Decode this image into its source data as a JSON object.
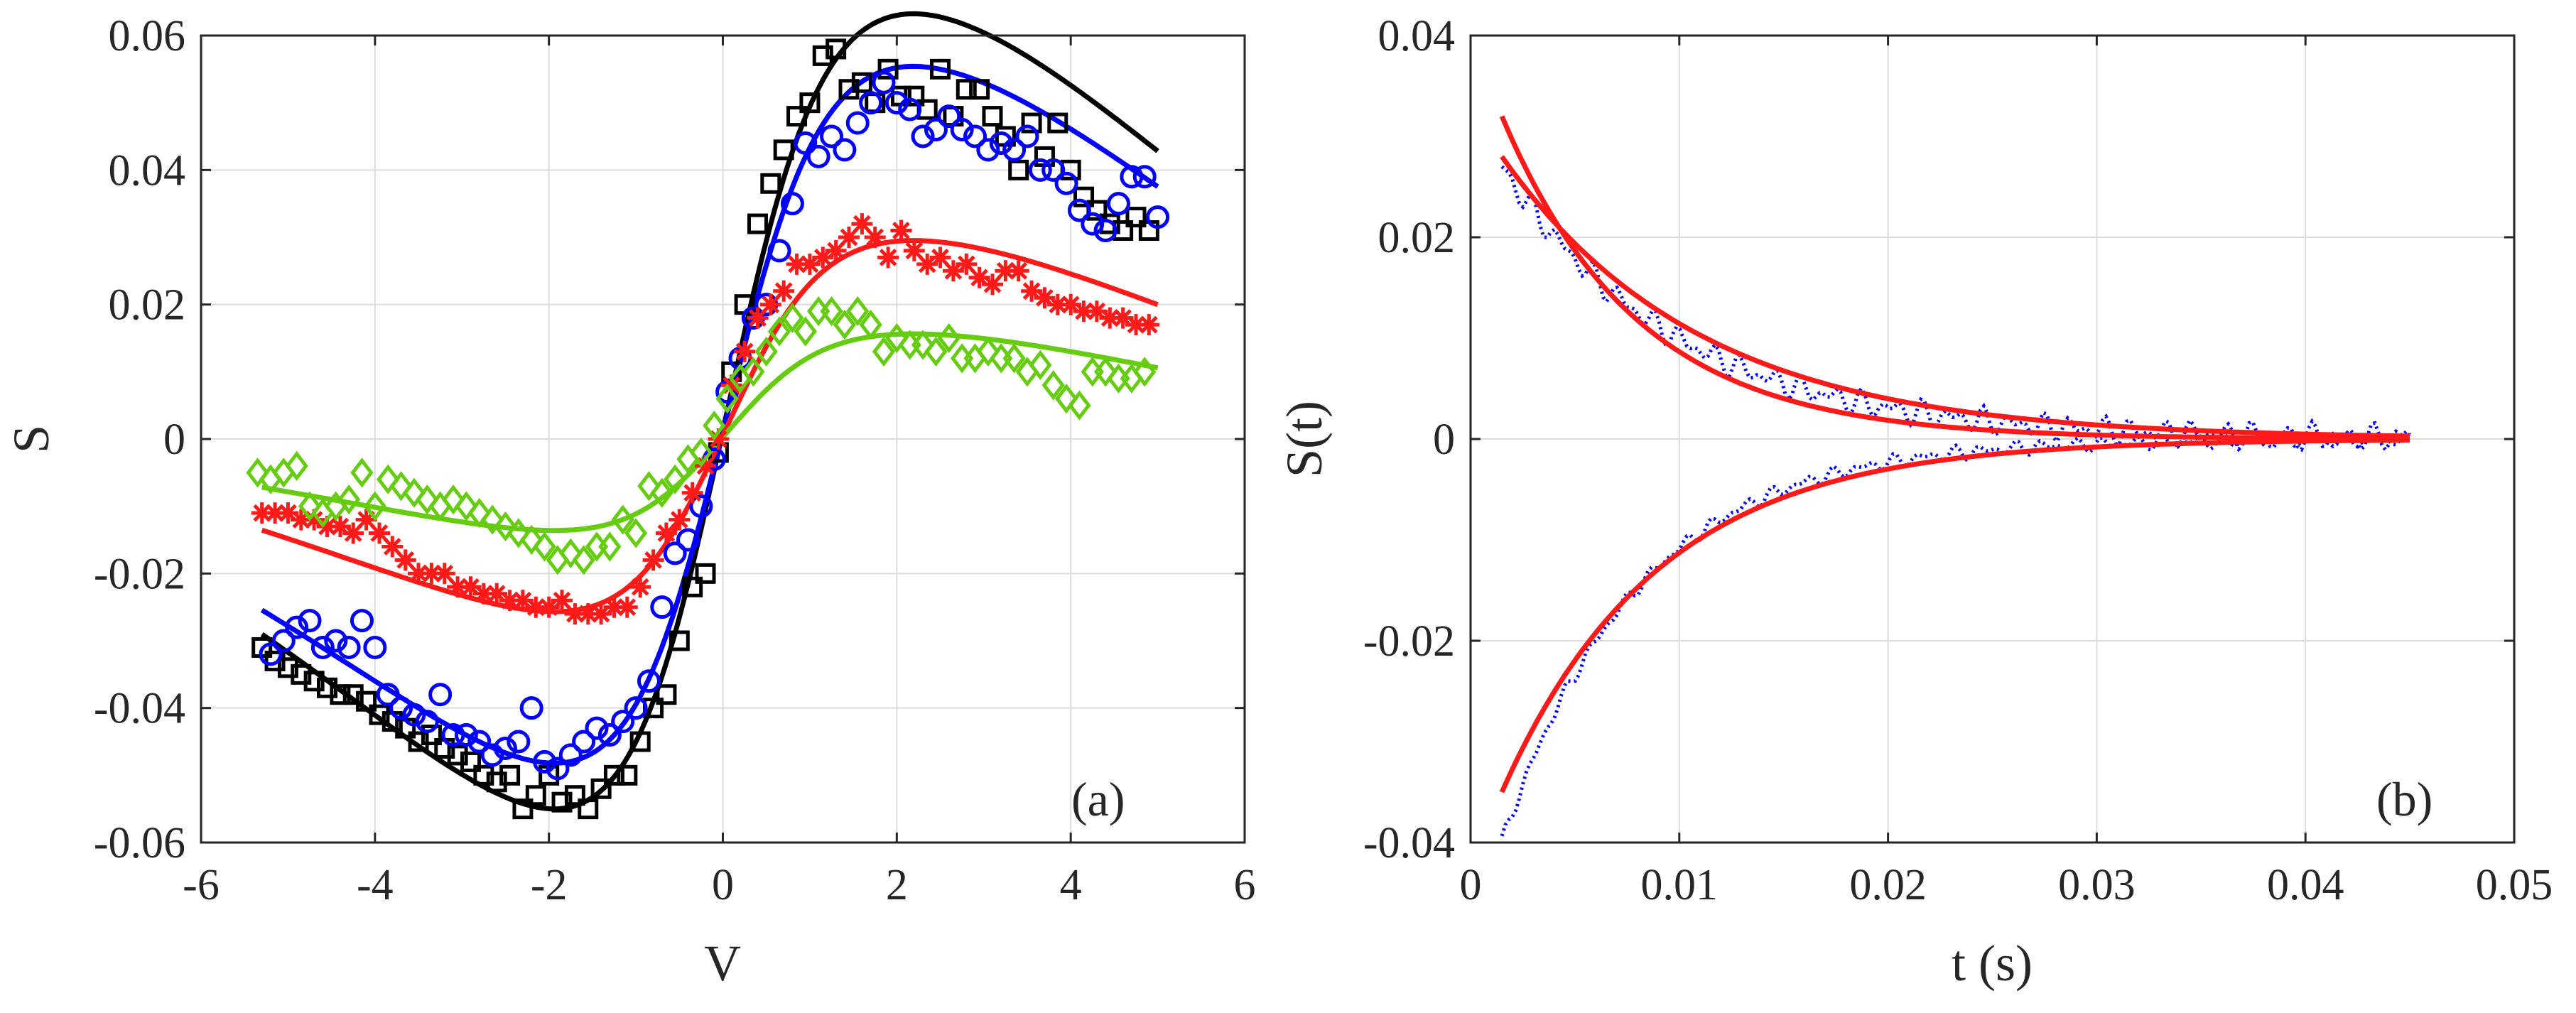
{
  "colors": {
    "black": "#000000",
    "blue": "#0000ff",
    "red": "#ff1a1a",
    "green": "#66cc11",
    "axis": "#262626",
    "grid": "#dcdcdc"
  },
  "chart_data": [
    {
      "type": "scatter",
      "panel_label": "(a)",
      "xlabel": "V",
      "ylabel": "S",
      "xlim": [
        -6,
        6
      ],
      "ylim": [
        -0.06,
        0.06
      ],
      "xticks": [
        -6,
        -4,
        -2,
        0,
        2,
        4,
        6
      ],
      "xtick_labels": [
        "-6",
        "-4",
        "-2",
        "0",
        "2",
        "4",
        "6"
      ],
      "yticks": [
        -0.06,
        -0.04,
        -0.02,
        0,
        0.02,
        0.04,
        0.06
      ],
      "ytick_labels": [
        "-0.06",
        "-0.04",
        "-0.02",
        "0",
        "0.02",
        "0.04",
        "0.06"
      ],
      "grid": true,
      "series": [
        {
          "name": "black squares",
          "marker": "square",
          "color": "#000000",
          "x": [
            -5.3,
            -5.15,
            -5.0,
            -4.85,
            -4.7,
            -4.55,
            -4.4,
            -4.25,
            -4.1,
            -3.95,
            -3.8,
            -3.65,
            -3.5,
            -3.35,
            -3.2,
            -3.05,
            -2.9,
            -2.75,
            -2.6,
            -2.45,
            -2.3,
            -2.15,
            -2.0,
            -1.85,
            -1.7,
            -1.55,
            -1.4,
            -1.25,
            -1.1,
            -0.95,
            -0.8,
            -0.65,
            -0.5,
            -0.35,
            -0.2,
            -0.05,
            0.1,
            0.25,
            0.4,
            0.55,
            0.7,
            0.85,
            1.0,
            1.15,
            1.3,
            1.45,
            1.6,
            1.75,
            1.9,
            2.05,
            2.2,
            2.35,
            2.5,
            2.65,
            2.8,
            2.95,
            3.1,
            3.25,
            3.4,
            3.55,
            3.7,
            3.85,
            4.0,
            4.15,
            4.3,
            4.45,
            4.6,
            4.75,
            4.9
          ],
          "y": [
            -0.031,
            -0.033,
            -0.034,
            -0.035,
            -0.036,
            -0.037,
            -0.038,
            -0.038,
            -0.039,
            -0.041,
            -0.042,
            -0.043,
            -0.045,
            -0.044,
            -0.046,
            -0.047,
            -0.048,
            -0.05,
            -0.051,
            -0.05,
            -0.055,
            -0.053,
            -0.05,
            -0.054,
            -0.053,
            -0.055,
            -0.052,
            -0.05,
            -0.05,
            -0.045,
            -0.04,
            -0.038,
            -0.03,
            -0.022,
            -0.02,
            -0.002,
            0.01,
            0.02,
            0.032,
            0.038,
            0.043,
            0.048,
            0.05,
            0.057,
            0.058,
            0.052,
            0.053,
            0.05,
            0.055,
            0.051,
            0.051,
            0.049,
            0.055,
            0.048,
            0.052,
            0.052,
            0.048,
            0.045,
            0.04,
            0.047,
            0.042,
            0.047,
            0.04,
            0.036,
            0.034,
            0.032,
            0.031,
            0.033,
            0.031
          ]
        },
        {
          "name": "blue circles",
          "marker": "circle",
          "color": "#0000ff",
          "x": [
            -5.2,
            -5.05,
            -4.9,
            -4.75,
            -4.6,
            -4.45,
            -4.3,
            -4.15,
            -4.0,
            -3.85,
            -3.7,
            -3.55,
            -3.4,
            -3.25,
            -3.1,
            -2.95,
            -2.8,
            -2.65,
            -2.5,
            -2.35,
            -2.2,
            -2.05,
            -1.9,
            -1.75,
            -1.6,
            -1.45,
            -1.3,
            -1.15,
            -1.0,
            -0.85,
            -0.7,
            -0.55,
            -0.4,
            -0.25,
            -0.1,
            0.05,
            0.2,
            0.35,
            0.5,
            0.65,
            0.8,
            0.95,
            1.1,
            1.25,
            1.4,
            1.55,
            1.7,
            1.85,
            2.0,
            2.15,
            2.3,
            2.45,
            2.6,
            2.75,
            2.9,
            3.05,
            3.2,
            3.35,
            3.5,
            3.65,
            3.8,
            3.95,
            4.1,
            4.25,
            4.4,
            4.55,
            4.7,
            4.85,
            5.0
          ],
          "y": [
            -0.032,
            -0.03,
            -0.028,
            -0.027,
            -0.031,
            -0.03,
            -0.031,
            -0.027,
            -0.031,
            -0.038,
            -0.04,
            -0.041,
            -0.042,
            -0.038,
            -0.044,
            -0.044,
            -0.045,
            -0.047,
            -0.046,
            -0.045,
            -0.04,
            -0.048,
            -0.049,
            -0.047,
            -0.045,
            -0.043,
            -0.044,
            -0.042,
            -0.04,
            -0.036,
            -0.025,
            -0.017,
            -0.015,
            -0.01,
            -0.003,
            0.007,
            0.012,
            0.018,
            0.02,
            0.028,
            0.035,
            0.044,
            0.042,
            0.045,
            0.043,
            0.047,
            0.05,
            0.053,
            0.05,
            0.049,
            0.045,
            0.046,
            0.048,
            0.046,
            0.045,
            0.043,
            0.044,
            0.043,
            0.045,
            0.04,
            0.04,
            0.038,
            0.034,
            0.032,
            0.031,
            0.035,
            0.039,
            0.039,
            0.033
          ]
        },
        {
          "name": "red asterisks",
          "marker": "asterisk",
          "color": "#ff1a1a",
          "x": [
            -5.3,
            -5.15,
            -5.0,
            -4.85,
            -4.7,
            -4.55,
            -4.4,
            -4.25,
            -4.1,
            -3.95,
            -3.8,
            -3.65,
            -3.5,
            -3.35,
            -3.2,
            -3.05,
            -2.9,
            -2.75,
            -2.6,
            -2.45,
            -2.3,
            -2.15,
            -2.0,
            -1.85,
            -1.7,
            -1.55,
            -1.4,
            -1.25,
            -1.1,
            -0.95,
            -0.8,
            -0.65,
            -0.5,
            -0.35,
            -0.2,
            -0.05,
            0.1,
            0.25,
            0.4,
            0.55,
            0.7,
            0.85,
            1.0,
            1.15,
            1.3,
            1.45,
            1.6,
            1.75,
            1.9,
            2.05,
            2.2,
            2.35,
            2.5,
            2.65,
            2.8,
            2.95,
            3.1,
            3.25,
            3.4,
            3.55,
            3.7,
            3.85,
            4.0,
            4.15,
            4.3,
            4.45,
            4.6,
            4.75,
            4.9
          ],
          "y": [
            -0.011,
            -0.011,
            -0.011,
            -0.012,
            -0.012,
            -0.013,
            -0.013,
            -0.014,
            -0.012,
            -0.014,
            -0.016,
            -0.018,
            -0.02,
            -0.02,
            -0.02,
            -0.022,
            -0.022,
            -0.023,
            -0.023,
            -0.024,
            -0.024,
            -0.025,
            -0.025,
            -0.024,
            -0.026,
            -0.026,
            -0.026,
            -0.025,
            -0.025,
            -0.022,
            -0.018,
            -0.014,
            -0.012,
            -0.008,
            -0.004,
            0.0,
            0.008,
            0.013,
            0.018,
            0.02,
            0.022,
            0.026,
            0.026,
            0.027,
            0.028,
            0.03,
            0.032,
            0.03,
            0.027,
            0.031,
            0.028,
            0.026,
            0.027,
            0.025,
            0.026,
            0.024,
            0.023,
            0.025,
            0.025,
            0.022,
            0.021,
            0.02,
            0.02,
            0.019,
            0.019,
            0.018,
            0.018,
            0.017,
            0.017
          ]
        },
        {
          "name": "green diamonds",
          "marker": "diamond",
          "color": "#66cc11",
          "x": [
            -5.35,
            -5.2,
            -5.05,
            -4.9,
            -4.75,
            -4.6,
            -4.45,
            -4.3,
            -4.15,
            -4.0,
            -3.85,
            -3.7,
            -3.55,
            -3.4,
            -3.25,
            -3.1,
            -2.95,
            -2.8,
            -2.65,
            -2.5,
            -2.35,
            -2.2,
            -2.05,
            -1.9,
            -1.75,
            -1.6,
            -1.45,
            -1.3,
            -1.15,
            -1.0,
            -0.85,
            -0.7,
            -0.55,
            -0.4,
            -0.25,
            -0.1,
            0.05,
            0.2,
            0.35,
            0.5,
            0.65,
            0.8,
            0.95,
            1.1,
            1.25,
            1.4,
            1.55,
            1.7,
            1.85,
            2.0,
            2.15,
            2.3,
            2.45,
            2.6,
            2.75,
            2.9,
            3.05,
            3.2,
            3.35,
            3.5,
            3.65,
            3.8,
            3.95,
            4.1,
            4.25,
            4.4,
            4.55,
            4.7,
            4.85
          ],
          "y": [
            -0.005,
            -0.006,
            -0.005,
            -0.004,
            -0.01,
            -0.011,
            -0.01,
            -0.009,
            -0.005,
            -0.01,
            -0.006,
            -0.007,
            -0.008,
            -0.009,
            -0.01,
            -0.009,
            -0.01,
            -0.011,
            -0.012,
            -0.013,
            -0.014,
            -0.015,
            -0.016,
            -0.018,
            -0.017,
            -0.018,
            -0.016,
            -0.016,
            -0.012,
            -0.014,
            -0.007,
            -0.008,
            -0.006,
            -0.003,
            -0.002,
            0.002,
            0.006,
            0.009,
            0.01,
            0.013,
            0.016,
            0.018,
            0.016,
            0.019,
            0.019,
            0.017,
            0.019,
            0.017,
            0.013,
            0.015,
            0.014,
            0.014,
            0.013,
            0.015,
            0.012,
            0.012,
            0.013,
            0.012,
            0.012,
            0.01,
            0.011,
            0.008,
            0.006,
            0.005,
            0.01,
            0.01,
            0.009,
            0.009,
            0.01
          ]
        }
      ],
      "fits": [
        {
          "name": "black fit",
          "color": "#000000",
          "amp": 0.0542,
          "x0": -0.02,
          "width": 1.1
        },
        {
          "name": "blue fit",
          "color": "#0000ff",
          "amp": 0.0475,
          "x0": -0.02,
          "width": 1.1
        },
        {
          "name": "red fit",
          "color": "#ff1a1a",
          "amp": 0.0253,
          "x0": -0.02,
          "width": 1.1
        },
        {
          "name": "green fit",
          "color": "#66cc11",
          "amp": 0.0134,
          "x0": -0.02,
          "width": 1.1
        }
      ]
    },
    {
      "type": "line",
      "panel_label": "(b)",
      "xlabel": "t (s)",
      "ylabel": "S(t)",
      "xlim": [
        0,
        0.05
      ],
      "ylim": [
        -0.04,
        0.04
      ],
      "xticks": [
        0,
        0.01,
        0.02,
        0.03,
        0.04,
        0.05
      ],
      "xtick_labels": [
        "0",
        "0.01",
        "0.02",
        "0.03",
        "0.04",
        "0.05"
      ],
      "yticks": [
        -0.04,
        -0.02,
        0,
        0.02,
        0.04
      ],
      "ytick_labels": [
        "-0.04",
        "-0.02",
        "0",
        "0.02",
        "0.04"
      ],
      "grid": true,
      "series": [
        {
          "name": "upper data",
          "style": "dotted",
          "color": "#0000ff",
          "t_start": 0.0015,
          "t_end": 0.045,
          "s0": 0.027,
          "tau": 0.0085,
          "noise": 0.0015
        },
        {
          "name": "lower data",
          "style": "dotted",
          "color": "#0000ff",
          "t_start": 0.0015,
          "t_end": 0.045,
          "s0": -0.04,
          "tau": 0.0065,
          "noise": 0.0008
        },
        {
          "name": "upper fit 1",
          "style": "solid",
          "color": "#ff1a1a",
          "t_start": 0.0015,
          "t_end": 0.045,
          "s0": 0.032,
          "tau": 0.0065
        },
        {
          "name": "upper fit 2",
          "style": "solid",
          "color": "#ff1a1a",
          "t_start": 0.0015,
          "t_end": 0.045,
          "s0": 0.028,
          "tau": 0.0095
        },
        {
          "name": "lower fit",
          "style": "solid",
          "color": "#ff1a1a",
          "t_start": 0.0015,
          "t_end": 0.045,
          "s0": -0.035,
          "tau": 0.0075
        }
      ]
    }
  ]
}
